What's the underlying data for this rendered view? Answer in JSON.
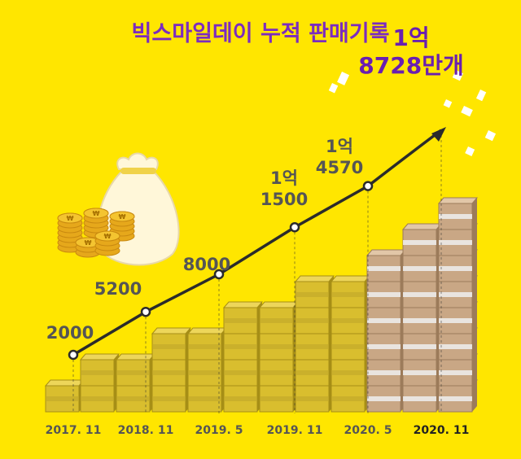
{
  "chart_data": {
    "type": "line",
    "title": "빅스마일데이 누적 판매기록",
    "categories": [
      "2017. 11",
      "2018. 11",
      "2019. 5",
      "2019. 11",
      "2020. 5",
      "2020. 11"
    ],
    "values": [
      2000,
      5200,
      8000,
      11500,
      14570,
      18728
    ],
    "data_labels": [
      [
        "2000"
      ],
      [
        "5200"
      ],
      [
        "8000"
      ],
      [
        "1억",
        "1500"
      ],
      [
        "1억",
        "4570"
      ],
      [
        "1억",
        "8728만개"
      ]
    ],
    "xlabel": "",
    "ylabel": "",
    "grid": false,
    "colors": {
      "background": "#FFE600",
      "title": "#7B2CBF",
      "line": "#2B2B2B",
      "label": "#555555",
      "highlight": "#6A1FB0",
      "box_gold": "#D9BE2E",
      "box_brown": "#C9A785"
    }
  },
  "icons": [
    "money-bag-icon",
    "coin-stack-icon"
  ]
}
